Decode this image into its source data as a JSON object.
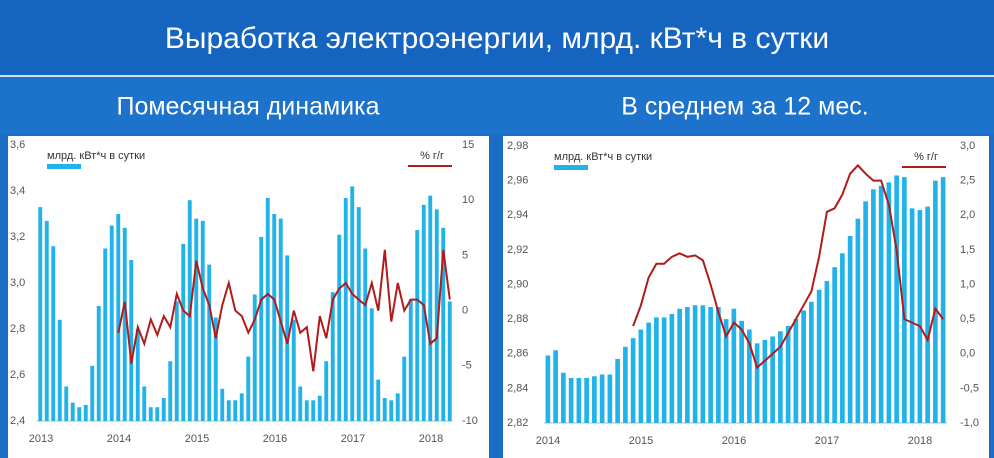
{
  "header": {
    "title": "Выработка электроэнергии, млрд. кВт*ч в сутки"
  },
  "chart_data": [
    {
      "type": "bar_line",
      "title": "Помесячная динамика",
      "categories": [
        "2013",
        null,
        null,
        null,
        null,
        null,
        null,
        null,
        null,
        null,
        null,
        null,
        "2014",
        null,
        null,
        null,
        null,
        null,
        null,
        null,
        null,
        null,
        null,
        null,
        "2015",
        null,
        null,
        null,
        null,
        null,
        null,
        null,
        null,
        null,
        null,
        null,
        "2016",
        null,
        null,
        null,
        null,
        null,
        null,
        null,
        null,
        null,
        null,
        null,
        "2017",
        null,
        null,
        null,
        null,
        null,
        null,
        null,
        null,
        null,
        null,
        null,
        "2018",
        null,
        null,
        null
      ],
      "series": [
        {
          "name": "млрд. кВт*ч в сутки",
          "color": "#20b2e8",
          "values": [
            3.33,
            3.27,
            3.16,
            2.84,
            2.55,
            2.48,
            2.46,
            2.47,
            2.64,
            2.9,
            3.15,
            3.25,
            3.3,
            3.24,
            3.1,
            2.8,
            2.55,
            2.46,
            2.46,
            2.5,
            2.66,
            2.92,
            3.17,
            3.36,
            3.28,
            3.27,
            3.08,
            2.85,
            2.54,
            2.49,
            2.49,
            2.52,
            2.68,
            2.95,
            3.2,
            3.37,
            3.3,
            3.28,
            3.12,
            2.84,
            2.55,
            2.49,
            2.49,
            2.51,
            2.66,
            2.96,
            3.21,
            3.37,
            3.42,
            3.33,
            3.15,
            2.89,
            2.58,
            2.5,
            2.49,
            2.52,
            2.68,
            2.93,
            3.23,
            3.34,
            3.38,
            3.32,
            3.24,
            2.92
          ]
        },
        {
          "name": "% г/г",
          "color": "#b01c1c",
          "axis": "y2",
          "values": [
            null,
            null,
            null,
            null,
            null,
            null,
            null,
            null,
            null,
            null,
            null,
            null,
            -2.0,
            0.8,
            -4.8,
            -1.5,
            -3.0,
            -0.8,
            -2.2,
            -0.5,
            -1.5,
            1.5,
            0.0,
            -0.5,
            4.5,
            2.0,
            0.5,
            -2.5,
            0.5,
            2.5,
            0.0,
            -0.5,
            -2.0,
            -0.8,
            1.0,
            1.5,
            1.0,
            -1.0,
            -3.0,
            0.0,
            -2.0,
            -1.5,
            -5.5,
            -0.5,
            -2.5,
            1.0,
            2.0,
            2.5,
            1.5,
            1.0,
            0.5,
            2.5,
            0.0,
            5.5,
            -1.0,
            2.5,
            0.0,
            1.0,
            1.0,
            0.5,
            -3.0,
            -2.5,
            5.5,
            1.0
          ]
        }
      ],
      "ylim": [
        2.4,
        3.6
      ],
      "yticks": [
        {
          "value": 2.4,
          "label": "2,4"
        },
        {
          "value": 2.6,
          "label": "2,6"
        },
        {
          "value": 2.8,
          "label": "2,8"
        },
        {
          "value": 3.0,
          "label": "3,0"
        },
        {
          "value": 3.2,
          "label": "3,2"
        },
        {
          "value": 3.4,
          "label": "3,4"
        },
        {
          "value": 3.6,
          "label": "3,6"
        }
      ],
      "y2lim": [
        -10,
        15
      ],
      "y2ticks": [
        -10,
        -5,
        0,
        5,
        10,
        15
      ]
    },
    {
      "type": "bar_line",
      "title": "В среднем за 12 мес.",
      "categories": [
        "2014",
        null,
        null,
        null,
        null,
        null,
        null,
        null,
        null,
        null,
        null,
        null,
        "2015",
        null,
        null,
        null,
        null,
        null,
        null,
        null,
        null,
        null,
        null,
        null,
        "2016",
        null,
        null,
        null,
        null,
        null,
        null,
        null,
        null,
        null,
        null,
        null,
        "2017",
        null,
        null,
        null,
        null,
        null,
        null,
        null,
        null,
        null,
        null,
        null,
        "2018",
        null,
        null,
        null
      ],
      "series": [
        {
          "name": "млрд. кВт*ч в сутки",
          "color": "#20b2e8",
          "values": [
            2.859,
            2.862,
            2.849,
            2.846,
            2.846,
            2.846,
            2.847,
            2.848,
            2.848,
            2.857,
            2.864,
            2.869,
            2.874,
            2.878,
            2.881,
            2.881,
            2.883,
            2.886,
            2.887,
            2.888,
            2.888,
            2.887,
            2.887,
            2.88,
            2.886,
            2.879,
            2.874,
            2.866,
            2.868,
            2.87,
            2.873,
            2.876,
            2.88,
            2.885,
            2.89,
            2.897,
            2.902,
            2.91,
            2.918,
            2.928,
            2.938,
            2.948,
            2.955,
            2.957,
            2.959,
            2.963,
            2.962,
            2.944,
            2.943,
            2.945,
            2.96,
            2.962
          ]
        },
        {
          "name": "% г/г",
          "color": "#b01c1c",
          "axis": "y2",
          "values": [
            null,
            null,
            null,
            null,
            null,
            null,
            null,
            null,
            null,
            null,
            null,
            0.4,
            0.7,
            1.1,
            1.3,
            1.3,
            1.4,
            1.45,
            1.4,
            1.42,
            1.35,
            1.0,
            0.6,
            0.25,
            0.45,
            0.35,
            0.15,
            -0.2,
            -0.1,
            0.0,
            0.1,
            0.3,
            0.5,
            0.7,
            0.9,
            1.4,
            2.05,
            2.1,
            2.3,
            2.6,
            2.72,
            2.6,
            2.5,
            2.5,
            2.15,
            1.5,
            0.5,
            0.45,
            0.4,
            0.2,
            0.65,
            0.5
          ]
        }
      ],
      "ylim": [
        2.82,
        2.98
      ],
      "yticks": [
        {
          "value": 2.82,
          "label": "2,82"
        },
        {
          "value": 2.84,
          "label": "2,84"
        },
        {
          "value": 2.86,
          "label": "2,86"
        },
        {
          "value": 2.88,
          "label": "2,88"
        },
        {
          "value": 2.9,
          "label": "2,90"
        },
        {
          "value": 2.92,
          "label": "2,92"
        },
        {
          "value": 2.94,
          "label": "2,94"
        },
        {
          "value": 2.96,
          "label": "2,96"
        },
        {
          "value": 2.98,
          "label": "2,98"
        }
      ],
      "y2lim": [
        -1.0,
        3.0
      ],
      "y2ticks": [
        {
          "value": -1.0,
          "label": "-1,0"
        },
        {
          "value": -0.5,
          "label": "-0,5"
        },
        {
          "value": 0.0,
          "label": "0,0"
        },
        {
          "value": 0.5,
          "label": "0,5"
        },
        {
          "value": 1.0,
          "label": "1,0"
        },
        {
          "value": 1.5,
          "label": "1,5"
        },
        {
          "value": 2.0,
          "label": "2,0"
        },
        {
          "value": 2.5,
          "label": "2,5"
        },
        {
          "value": 3.0,
          "label": "3,0"
        }
      ]
    }
  ]
}
